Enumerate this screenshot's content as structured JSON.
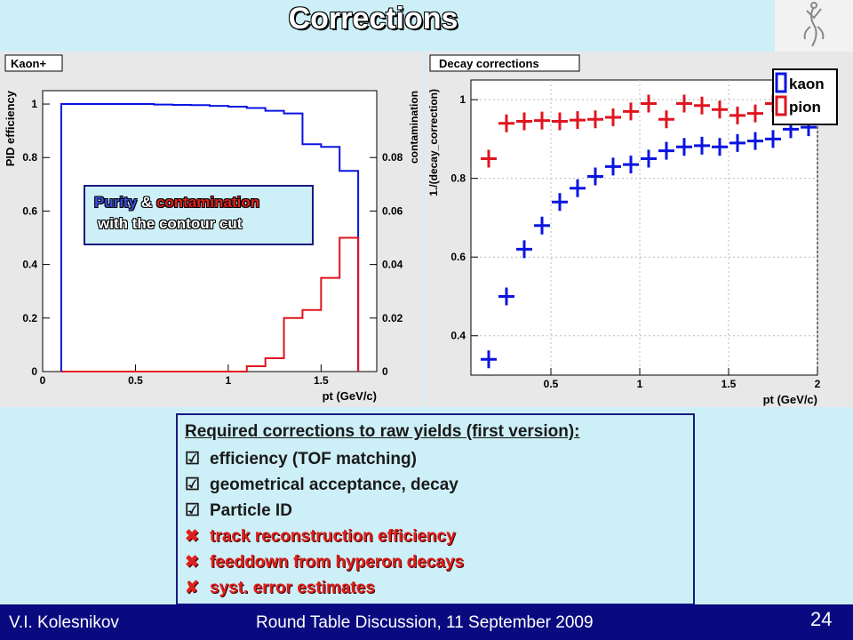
{
  "slide": {
    "title": "Corrections"
  },
  "annotation": {
    "purity": "Purity",
    "amp": "&",
    "contamination": "contamination",
    "line2": "with the contour cut"
  },
  "box": {
    "heading": "Required corrections to raw yields (first version):",
    "items": [
      {
        "mark": "☑",
        "text": "efficiency (TOF matching)",
        "status": "done"
      },
      {
        "mark": "☑",
        "text": "geometrical acceptance, decay",
        "status": "done"
      },
      {
        "mark": "☑",
        "text": "Particle ID",
        "status": "done"
      },
      {
        "mark": "✖",
        "text": "track reconstruction efficiency",
        "status": "todo"
      },
      {
        "mark": "✖",
        "text": "feeddown from hyperon decays",
        "status": "todo"
      },
      {
        "mark": "✘",
        "text": "syst. error estimates",
        "status": "todo"
      }
    ]
  },
  "footer": {
    "author": "V.I. Kolesnikov",
    "event": "Round Table Discussion, 11 September 2009",
    "page": "24"
  },
  "colors": {
    "blue": "#0a14e0",
    "red": "#e0141e",
    "navy": "#0a0a80",
    "background": "#cdeff7"
  },
  "chart_data": [
    {
      "type": "line",
      "step": true,
      "title": "Kaon+",
      "xlabel": "pt (GeV/c)",
      "ylabel": "PID efficiency",
      "y2label": "contamination",
      "xlim": [
        0,
        1.8
      ],
      "ylim": [
        0,
        1.05
      ],
      "y2lim": [
        0,
        0.105
      ],
      "xticks": [
        "0",
        "0.5",
        "1",
        "1.5"
      ],
      "yticks": [
        "0",
        "0.2",
        "0.4",
        "0.6",
        "0.8",
        "1"
      ],
      "y2ticks": [
        "0",
        "0.02",
        "0.04",
        "0.06",
        "0.08"
      ],
      "grid": false,
      "series": [
        {
          "axis": "left",
          "color": "#0a14e0",
          "x": [
            0.1,
            0.2,
            0.3,
            0.4,
            0.5,
            0.6,
            0.7,
            0.8,
            0.9,
            1.0,
            1.1,
            1.2,
            1.3,
            1.4,
            1.5,
            1.6,
            1.7
          ],
          "values": [
            1.0,
            1.0,
            1.0,
            1.0,
            1.0,
            0.998,
            0.997,
            0.996,
            0.993,
            0.99,
            0.985,
            0.975,
            0.965,
            0.85,
            0.84,
            0.75,
            0.0
          ]
        },
        {
          "axis": "right",
          "color": "#e0141e",
          "x": [
            0.1,
            1.0,
            1.1,
            1.2,
            1.3,
            1.4,
            1.5,
            1.6,
            1.7
          ],
          "values": [
            0.0,
            0.0,
            0.002,
            0.005,
            0.02,
            0.023,
            0.035,
            0.05,
            0.0
          ]
        }
      ]
    },
    {
      "type": "scatter",
      "title": "Decay corrections",
      "xlabel": "pt (GeV/c)",
      "ylabel": "1./(decay_correction)",
      "xlim": [
        0.05,
        2.0
      ],
      "ylim": [
        0.3,
        1.05
      ],
      "xticks": [
        "0.5",
        "1",
        "1.5",
        "2"
      ],
      "yticks": [
        "0.4",
        "0.6",
        "0.8",
        "1"
      ],
      "grid": true,
      "legend": "top-right",
      "series": [
        {
          "name": "kaon",
          "color": "#0a14e0",
          "x": [
            0.15,
            0.25,
            0.35,
            0.45,
            0.55,
            0.65,
            0.75,
            0.85,
            0.95,
            1.05,
            1.15,
            1.25,
            1.35,
            1.45,
            1.55,
            1.65,
            1.75,
            1.85,
            1.95
          ],
          "values": [
            0.34,
            0.5,
            0.62,
            0.68,
            0.74,
            0.775,
            0.805,
            0.83,
            0.835,
            0.85,
            0.87,
            0.88,
            0.883,
            0.88,
            0.89,
            0.895,
            0.9,
            0.925,
            0.93
          ]
        },
        {
          "name": "pion",
          "color": "#e0141e",
          "x": [
            0.15,
            0.25,
            0.35,
            0.45,
            0.55,
            0.65,
            0.75,
            0.85,
            0.95,
            1.05,
            1.15,
            1.25,
            1.35,
            1.45,
            1.55,
            1.65,
            1.75
          ],
          "values": [
            0.85,
            0.94,
            0.945,
            0.947,
            0.945,
            0.948,
            0.95,
            0.955,
            0.97,
            0.99,
            0.95,
            0.99,
            0.985,
            0.975,
            0.96,
            0.965,
            0.99
          ]
        }
      ]
    }
  ]
}
